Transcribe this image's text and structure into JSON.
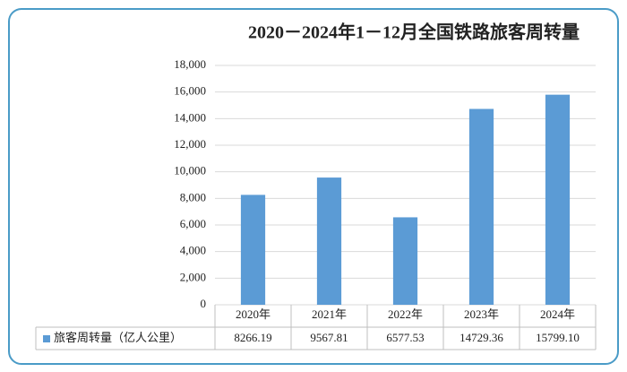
{
  "chart_data": {
    "type": "bar",
    "title": "2020－2024年1－12月全国铁路旅客周转量",
    "categories": [
      "2020年",
      "2021年",
      "2022年",
      "2023年",
      "2024年"
    ],
    "series": [
      {
        "name": "旅客周转量（亿人公里）",
        "color": "#5b9bd5",
        "values": [
          8266.19,
          9567.81,
          6577.53,
          14729.36,
          15799.1
        ],
        "value_labels": [
          "8266.19",
          "9567.81",
          "6577.53",
          "14729.36",
          "15799.10"
        ]
      }
    ],
    "ylim": [
      0,
      18000
    ],
    "yticks": [
      0,
      {
        "value": 2000,
        "label": "2,000"
      },
      {
        "value": 4000,
        "label": "4,000"
      },
      {
        "value": 6000,
        "label": "6,000"
      },
      {
        "value": 8000,
        "label": "8,000"
      },
      {
        "value": 10000,
        "label": "10,000"
      },
      {
        "value": 12000,
        "label": "12,000"
      },
      {
        "value": 14000,
        "label": "14,000"
      },
      {
        "value": 16000,
        "label": "16,000"
      },
      {
        "value": 18000,
        "label": "18,000"
      }
    ],
    "grid": true
  }
}
